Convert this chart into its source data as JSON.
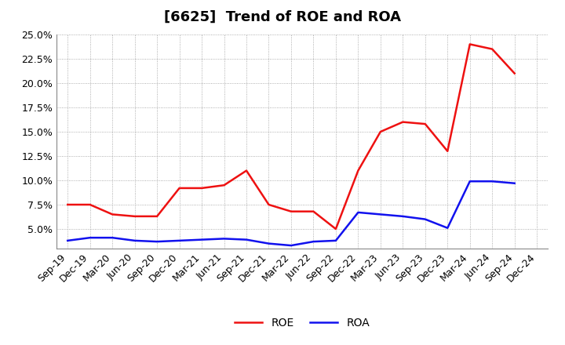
{
  "title": "[6625]  Trend of ROE and ROA",
  "x_labels": [
    "Sep-19",
    "Dec-19",
    "Mar-20",
    "Jun-20",
    "Sep-20",
    "Dec-20",
    "Mar-21",
    "Jun-21",
    "Sep-21",
    "Dec-21",
    "Mar-22",
    "Jun-22",
    "Sep-22",
    "Dec-22",
    "Mar-23",
    "Jun-23",
    "Sep-23",
    "Dec-23",
    "Mar-24",
    "Jun-24",
    "Sep-24",
    "Dec-24"
  ],
  "roe": [
    7.5,
    7.5,
    6.5,
    6.3,
    6.3,
    9.2,
    9.2,
    9.5,
    11.0,
    7.5,
    6.8,
    6.8,
    5.0,
    11.0,
    15.0,
    16.0,
    15.8,
    13.0,
    24.0,
    23.5,
    21.0,
    null
  ],
  "roa": [
    3.8,
    4.1,
    4.1,
    3.8,
    3.7,
    3.8,
    3.9,
    4.0,
    3.9,
    3.5,
    3.3,
    3.7,
    3.8,
    6.7,
    6.5,
    6.3,
    6.0,
    5.1,
    9.9,
    9.9,
    9.7,
    null
  ],
  "roe_color": "#ee1111",
  "roa_color": "#1111ee",
  "bg_color": "#ffffff",
  "plot_bg_color": "#ffffff",
  "grid_color": "#999999",
  "ylim_min": 3.0,
  "ylim_max": 25.0,
  "yticks": [
    5.0,
    7.5,
    10.0,
    12.5,
    15.0,
    17.5,
    20.0,
    22.5,
    25.0
  ],
  "title_fontsize": 13,
  "tick_fontsize": 9,
  "legend_fontsize": 10,
  "line_width": 1.8
}
